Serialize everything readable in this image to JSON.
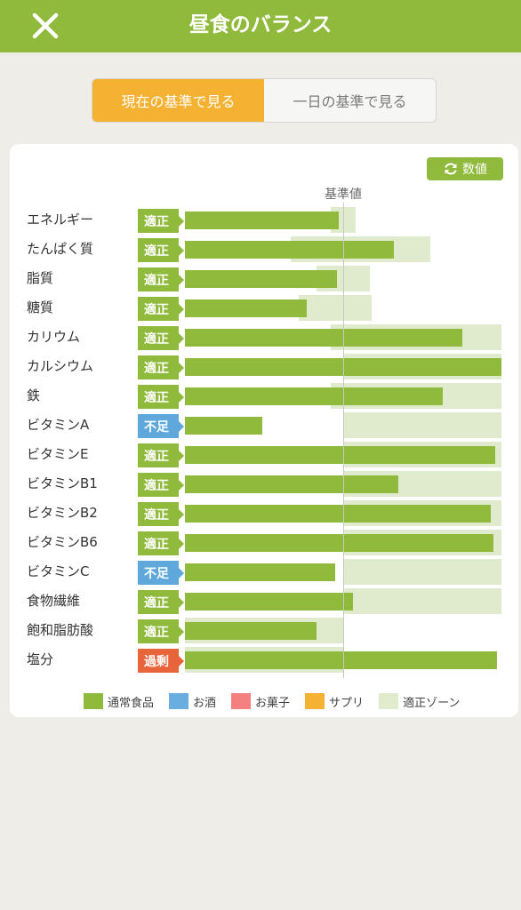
{
  "header": {
    "title": "昼食のバランス"
  },
  "tabs": {
    "current": "現在の基準で見る",
    "daily": "一日の基準で見る"
  },
  "values_button": {
    "label": "数値"
  },
  "chart_data": {
    "type": "bar",
    "reference_label": "基準値",
    "rows": [
      {
        "name": "エネルギー",
        "status": "適正",
        "level": "ok",
        "value": 0.97,
        "zone": [
          0.92,
          1.08
        ]
      },
      {
        "name": "たんぱく質",
        "status": "適正",
        "level": "ok",
        "value": 1.32,
        "zone": [
          0.67,
          1.55
        ]
      },
      {
        "name": "脂質",
        "status": "適正",
        "level": "ok",
        "value": 0.96,
        "zone": [
          0.83,
          1.17
        ]
      },
      {
        "name": "糖質",
        "status": "適正",
        "level": "ok",
        "value": 0.77,
        "zone": [
          0.72,
          1.18
        ]
      },
      {
        "name": "カリウム",
        "status": "適正",
        "level": "ok",
        "value": 1.75,
        "zone": [
          0.92,
          2.0
        ]
      },
      {
        "name": "カルシウム",
        "status": "適正",
        "level": "ok",
        "value": 2.0,
        "zone": [
          1.0,
          2.0
        ]
      },
      {
        "name": "鉄",
        "status": "適正",
        "level": "ok",
        "value": 1.63,
        "zone": [
          0.92,
          2.0
        ]
      },
      {
        "name": "ビタミンA",
        "status": "不足",
        "level": "low",
        "value": 0.49,
        "zone": [
          1.0,
          2.0
        ]
      },
      {
        "name": "ビタミンE",
        "status": "適正",
        "level": "ok",
        "value": 1.96,
        "zone": [
          1.0,
          2.0
        ]
      },
      {
        "name": "ビタミンB1",
        "status": "適正",
        "level": "ok",
        "value": 1.35,
        "zone": [
          1.0,
          2.0
        ]
      },
      {
        "name": "ビタミンB2",
        "status": "適正",
        "level": "ok",
        "value": 1.93,
        "zone": [
          1.0,
          2.0
        ]
      },
      {
        "name": "ビタミンB6",
        "status": "適正",
        "level": "ok",
        "value": 1.95,
        "zone": [
          1.0,
          2.0
        ]
      },
      {
        "name": "ビタミンC",
        "status": "不足",
        "level": "low",
        "value": 0.95,
        "zone": [
          1.0,
          2.0
        ]
      },
      {
        "name": "食物繊維",
        "status": "適正",
        "level": "ok",
        "value": 1.06,
        "zone": [
          1.0,
          2.0
        ]
      },
      {
        "name": "飽和脂肪酸",
        "status": "適正",
        "level": "ok",
        "value": 0.83,
        "zone": [
          0.0,
          1.0
        ]
      },
      {
        "name": "塩分",
        "status": "過剰",
        "level": "high",
        "value": 1.97,
        "zone": [
          0.0,
          1.0
        ]
      }
    ],
    "legend": [
      {
        "label": "通常食品",
        "color": "#8fba3c"
      },
      {
        "label": "お酒",
        "color": "#6aaee0"
      },
      {
        "label": "お菓子",
        "color": "#f58080"
      },
      {
        "label": "サプリ",
        "color": "#f5b132"
      },
      {
        "label": "適正ゾーン",
        "color": "#dfebcc"
      }
    ]
  }
}
